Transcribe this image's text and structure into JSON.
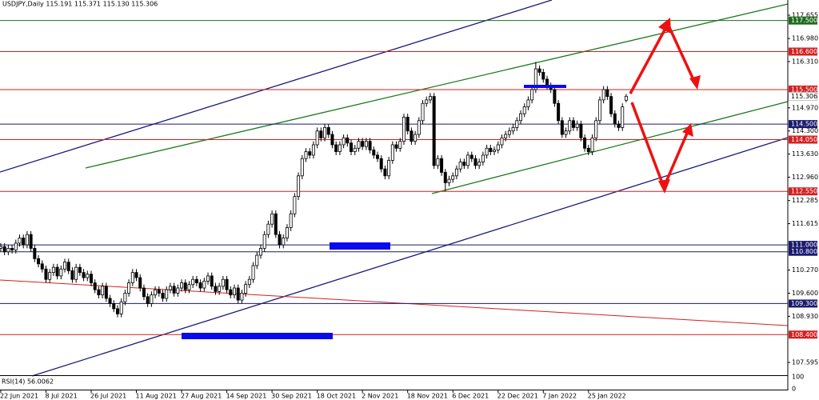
{
  "chart_data": {
    "type": "candlestick",
    "title": "USDJPY,Daily  115.191 115.371 115.130 115.306",
    "indicator_label": "RSI(14) 56.0062",
    "indicator_ylim": [
      0,
      100
    ],
    "indicator_yticks": [
      100,
      0
    ],
    "up_color": "#ffffff",
    "down_color": "#000000",
    "xlim": [
      -0.2,
      208.9
    ],
    "ylim": [
      107.247,
      118.095
    ],
    "xticks": [
      {
        "value": 0,
        "label": "22 Jun 2021"
      },
      {
        "value": 12,
        "label": "8 Jul 2021"
      },
      {
        "value": 24,
        "label": "26 Jul 2021"
      },
      {
        "value": 36,
        "label": "11 Aug 2021"
      },
      {
        "value": 48,
        "label": "27 Aug 2021"
      },
      {
        "value": 60,
        "label": "14 Sep 2021"
      },
      {
        "value": 72,
        "label": "30 Sep 2021"
      },
      {
        "value": 84,
        "label": "18 Oct 2021"
      },
      {
        "value": 96,
        "label": "2 Nov 2021"
      },
      {
        "value": 108,
        "label": "18 Nov 2021"
      },
      {
        "value": 120,
        "label": "6 Dec 2021"
      },
      {
        "value": 132,
        "label": "22 Dec 2021"
      },
      {
        "value": 144,
        "label": "7 Jan 2022"
      },
      {
        "value": 156,
        "label": "25 Jan 2022"
      }
    ],
    "yticks": [
      {
        "value": 117.655,
        "label": "117.655"
      },
      {
        "value": 116.98,
        "label": "116.980"
      },
      {
        "value": 116.31,
        "label": "116.310"
      },
      {
        "value": 114.97,
        "label": "114.970"
      },
      {
        "value": 114.3,
        "label": "114.300"
      },
      {
        "value": 113.63,
        "label": "113.630"
      },
      {
        "value": 112.96,
        "label": "112.960"
      },
      {
        "value": 112.285,
        "label": "112.285"
      },
      {
        "value": 111.615,
        "label": "111.615"
      },
      {
        "value": 110.27,
        "label": "110.270"
      },
      {
        "value": 109.6,
        "label": "109.600"
      },
      {
        "value": 108.93,
        "label": "108.930"
      },
      {
        "value": 107.595,
        "label": "107.595"
      }
    ],
    "levels": [
      {
        "value": 117.5,
        "label": "117.500",
        "color": "#1e6b1e"
      },
      {
        "value": 116.6,
        "label": "116.600",
        "color": "#d42020"
      },
      {
        "value": 115.5,
        "label": "115.500",
        "color": "#d42020"
      },
      {
        "value": 114.5,
        "label": "114.500",
        "color": "#1a1a6e"
      },
      {
        "value": 114.05,
        "label": "114.050",
        "color": "#d42020"
      },
      {
        "value": 112.55,
        "label": "112.550",
        "color": "#d42020"
      },
      {
        "value": 111.0,
        "label": "111.000",
        "color": "#1a1a6e"
      },
      {
        "value": 110.8,
        "label": "110.800",
        "color": "#1a1a6e"
      },
      {
        "value": 109.3,
        "label": "109.300",
        "color": "#1a1a6e"
      },
      {
        "value": 108.4,
        "label": "108.400",
        "color": "#d42020"
      }
    ],
    "last_price": {
      "value": 115.306,
      "label": "115.306"
    },
    "ohlc": [
      [
        110.9,
        111.05,
        110.8,
        110.95
      ],
      [
        110.95,
        111.05,
        110.7,
        110.8
      ],
      [
        110.8,
        111.0,
        110.7,
        110.9
      ],
      [
        110.9,
        111.0,
        110.75,
        110.85
      ],
      [
        110.85,
        111.15,
        110.75,
        111.05
      ],
      [
        111.05,
        111.3,
        110.95,
        111.2
      ],
      [
        111.2,
        111.3,
        110.9,
        111.0
      ],
      [
        111.0,
        111.4,
        110.9,
        111.3
      ],
      [
        111.3,
        111.4,
        110.8,
        110.9
      ],
      [
        110.9,
        111.0,
        110.5,
        110.6
      ],
      [
        110.6,
        110.7,
        110.35,
        110.45
      ],
      [
        110.45,
        110.55,
        110.2,
        110.3
      ],
      [
        110.3,
        110.4,
        109.9,
        110.0
      ],
      [
        110.0,
        110.3,
        109.9,
        110.2
      ],
      [
        110.2,
        110.45,
        110.1,
        110.35
      ],
      [
        110.35,
        110.45,
        110.0,
        110.1
      ],
      [
        110.1,
        110.4,
        110.0,
        110.3
      ],
      [
        110.3,
        110.6,
        110.2,
        110.5
      ],
      [
        110.5,
        110.6,
        110.15,
        110.25
      ],
      [
        110.25,
        110.35,
        109.9,
        110.0
      ],
      [
        110.0,
        110.45,
        109.9,
        110.35
      ],
      [
        110.35,
        110.45,
        110.1,
        110.2
      ],
      [
        110.2,
        110.3,
        109.95,
        110.05
      ],
      [
        110.05,
        110.25,
        109.95,
        110.15
      ],
      [
        110.15,
        110.25,
        109.8,
        109.9
      ],
      [
        109.9,
        110.0,
        109.6,
        109.7
      ],
      [
        109.7,
        109.8,
        109.45,
        109.55
      ],
      [
        109.55,
        109.9,
        109.45,
        109.8
      ],
      [
        109.8,
        109.9,
        109.35,
        109.45
      ],
      [
        109.45,
        109.55,
        109.2,
        109.3
      ],
      [
        109.3,
        109.4,
        109.05,
        109.15
      ],
      [
        109.15,
        109.25,
        108.9,
        109.0
      ],
      [
        109.0,
        109.45,
        108.9,
        109.35
      ],
      [
        109.35,
        109.7,
        109.25,
        109.6
      ],
      [
        109.6,
        110.0,
        109.5,
        109.9
      ],
      [
        109.9,
        110.3,
        109.8,
        110.2
      ],
      [
        110.2,
        110.3,
        109.95,
        110.05
      ],
      [
        110.05,
        110.15,
        109.65,
        109.75
      ],
      [
        109.75,
        109.85,
        109.4,
        109.5
      ],
      [
        109.5,
        109.6,
        109.2,
        109.3
      ],
      [
        109.3,
        109.65,
        109.2,
        109.55
      ],
      [
        109.55,
        109.8,
        109.45,
        109.7
      ],
      [
        109.7,
        109.8,
        109.5,
        109.6
      ],
      [
        109.6,
        109.7,
        109.35,
        109.45
      ],
      [
        109.45,
        109.8,
        109.35,
        109.7
      ],
      [
        109.7,
        109.9,
        109.6,
        109.8
      ],
      [
        109.8,
        109.9,
        109.5,
        109.6
      ],
      [
        109.6,
        109.85,
        109.5,
        109.75
      ],
      [
        109.75,
        110.0,
        109.65,
        109.9
      ],
      [
        109.9,
        110.0,
        109.6,
        109.7
      ],
      [
        109.7,
        109.95,
        109.6,
        109.85
      ],
      [
        109.85,
        110.1,
        109.75,
        110.0
      ],
      [
        110.0,
        110.1,
        109.8,
        109.9
      ],
      [
        109.9,
        110.0,
        109.65,
        109.75
      ],
      [
        109.75,
        110.05,
        109.65,
        109.95
      ],
      [
        109.95,
        110.2,
        109.85,
        110.1
      ],
      [
        110.1,
        110.2,
        109.7,
        109.8
      ],
      [
        109.8,
        109.9,
        109.55,
        109.65
      ],
      [
        109.65,
        109.9,
        109.55,
        109.8
      ],
      [
        109.8,
        110.1,
        109.7,
        110.0
      ],
      [
        110.0,
        110.1,
        109.6,
        109.7
      ],
      [
        109.7,
        109.8,
        109.45,
        109.55
      ],
      [
        109.55,
        109.85,
        109.45,
        109.75
      ],
      [
        109.75,
        109.85,
        109.3,
        109.4
      ],
      [
        109.4,
        109.7,
        109.3,
        109.6
      ],
      [
        109.6,
        109.95,
        109.5,
        109.85
      ],
      [
        109.85,
        110.1,
        109.75,
        110.0
      ],
      [
        110.0,
        110.5,
        109.9,
        110.4
      ],
      [
        110.4,
        110.8,
        110.3,
        110.7
      ],
      [
        110.7,
        111.0,
        110.6,
        110.9
      ],
      [
        110.9,
        111.4,
        110.8,
        111.3
      ],
      [
        111.3,
        111.7,
        111.2,
        111.6
      ],
      [
        111.6,
        112.0,
        111.5,
        111.9
      ],
      [
        111.9,
        112.0,
        111.2,
        111.3
      ],
      [
        111.3,
        111.4,
        110.9,
        111.0
      ],
      [
        111.0,
        111.3,
        110.9,
        111.2
      ],
      [
        111.2,
        111.6,
        111.1,
        111.5
      ],
      [
        111.5,
        112.0,
        111.4,
        111.9
      ],
      [
        111.9,
        112.5,
        111.8,
        112.4
      ],
      [
        112.4,
        113.1,
        112.3,
        113.0
      ],
      [
        113.0,
        113.6,
        112.9,
        113.5
      ],
      [
        113.5,
        113.8,
        113.4,
        113.7
      ],
      [
        113.7,
        113.8,
        113.5,
        113.6
      ],
      [
        113.6,
        114.0,
        113.5,
        113.9
      ],
      [
        113.9,
        114.4,
        113.8,
        114.3
      ],
      [
        114.3,
        114.4,
        114.0,
        114.1
      ],
      [
        114.1,
        114.5,
        114.0,
        114.4
      ],
      [
        114.4,
        114.5,
        114.1,
        114.2
      ],
      [
        114.2,
        114.3,
        113.8,
        113.9
      ],
      [
        113.9,
        114.0,
        113.6,
        113.7
      ],
      [
        113.7,
        114.0,
        113.6,
        113.9
      ],
      [
        113.9,
        114.2,
        113.8,
        114.1
      ],
      [
        114.1,
        114.2,
        113.85,
        113.95
      ],
      [
        113.95,
        114.05,
        113.6,
        113.7
      ],
      [
        113.7,
        113.9,
        113.6,
        113.8
      ],
      [
        113.8,
        114.1,
        113.7,
        114.0
      ],
      [
        114.0,
        114.1,
        113.75,
        113.85
      ],
      [
        113.85,
        114.1,
        113.75,
        114.0
      ],
      [
        114.0,
        114.1,
        113.65,
        113.75
      ],
      [
        113.75,
        113.85,
        113.5,
        113.6
      ],
      [
        113.6,
        113.7,
        113.4,
        113.5
      ],
      [
        113.5,
        113.6,
        113.1,
        113.2
      ],
      [
        113.2,
        113.3,
        112.9,
        113.0
      ],
      [
        113.0,
        113.55,
        112.9,
        113.45
      ],
      [
        113.45,
        114.0,
        113.35,
        113.9
      ],
      [
        113.9,
        114.0,
        113.7,
        113.8
      ],
      [
        113.8,
        114.1,
        113.7,
        114.0
      ],
      [
        114.0,
        114.8,
        113.9,
        114.7
      ],
      [
        114.7,
        114.8,
        114.2,
        114.3
      ],
      [
        114.3,
        114.4,
        113.9,
        114.0
      ],
      [
        114.0,
        114.3,
        113.9,
        114.2
      ],
      [
        114.2,
        114.7,
        114.1,
        114.6
      ],
      [
        114.6,
        115.2,
        114.5,
        115.1
      ],
      [
        115.1,
        115.3,
        115.0,
        115.2
      ],
      [
        115.2,
        115.4,
        115.1,
        115.3
      ],
      [
        115.3,
        115.4,
        113.2,
        113.3
      ],
      [
        113.3,
        113.6,
        113.2,
        113.5
      ],
      [
        113.5,
        113.6,
        113.0,
        113.1
      ],
      [
        113.1,
        113.2,
        112.55,
        112.8
      ],
      [
        112.8,
        113.0,
        112.7,
        112.9
      ],
      [
        112.9,
        113.1,
        112.8,
        113.0
      ],
      [
        113.0,
        113.3,
        112.9,
        113.2
      ],
      [
        113.2,
        113.5,
        113.1,
        113.4
      ],
      [
        113.4,
        113.5,
        113.2,
        113.3
      ],
      [
        113.3,
        113.7,
        113.2,
        113.6
      ],
      [
        113.6,
        113.7,
        113.4,
        113.5
      ],
      [
        113.5,
        113.6,
        113.2,
        113.3
      ],
      [
        113.3,
        113.5,
        113.2,
        113.4
      ],
      [
        113.4,
        113.7,
        113.3,
        113.6
      ],
      [
        113.6,
        113.9,
        113.5,
        113.8
      ],
      [
        113.8,
        113.9,
        113.6,
        113.7
      ],
      [
        113.7,
        113.85,
        113.6,
        113.75
      ],
      [
        113.75,
        114.0,
        113.65,
        113.9
      ],
      [
        113.9,
        114.2,
        113.8,
        114.1
      ],
      [
        114.1,
        114.3,
        114.0,
        114.2
      ],
      [
        114.2,
        114.4,
        114.1,
        114.3
      ],
      [
        114.3,
        114.5,
        114.2,
        114.4
      ],
      [
        114.4,
        114.7,
        114.3,
        114.6
      ],
      [
        114.6,
        114.9,
        114.5,
        114.8
      ],
      [
        114.8,
        115.1,
        114.7,
        115.0
      ],
      [
        115.0,
        115.3,
        114.9,
        115.2
      ],
      [
        115.2,
        115.6,
        115.1,
        115.5
      ],
      [
        115.5,
        116.3,
        115.4,
        116.1
      ],
      [
        116.1,
        116.2,
        115.9,
        116.0
      ],
      [
        116.0,
        116.1,
        115.7,
        115.8
      ],
      [
        115.8,
        115.9,
        115.5,
        115.6
      ],
      [
        115.6,
        115.7,
        115.4,
        115.5
      ],
      [
        115.5,
        115.6,
        115.0,
        115.1
      ],
      [
        115.1,
        115.2,
        114.5,
        114.6
      ],
      [
        114.6,
        114.7,
        114.1,
        114.2
      ],
      [
        114.2,
        114.4,
        114.1,
        114.3
      ],
      [
        114.3,
        114.7,
        114.2,
        114.6
      ],
      [
        114.6,
        114.7,
        114.3,
        114.4
      ],
      [
        114.4,
        114.6,
        114.3,
        114.5
      ],
      [
        114.5,
        114.6,
        114.0,
        114.1
      ],
      [
        114.1,
        114.2,
        113.7,
        113.8
      ],
      [
        113.8,
        113.9,
        113.6,
        113.7
      ],
      [
        113.7,
        114.2,
        113.6,
        114.1
      ],
      [
        114.1,
        114.7,
        114.0,
        114.6
      ],
      [
        114.6,
        115.3,
        114.5,
        115.2
      ],
      [
        115.2,
        115.6,
        115.1,
        115.5
      ],
      [
        115.5,
        115.6,
        115.2,
        115.3
      ],
      [
        115.3,
        115.4,
        114.7,
        114.8
      ],
      [
        114.8,
        114.9,
        114.4,
        114.5
      ],
      [
        114.5,
        114.6,
        114.3,
        114.4
      ],
      [
        114.4,
        115.1,
        114.3,
        115.0
      ],
      [
        115.191,
        115.371,
        115.13,
        115.306
      ]
    ]
  }
}
